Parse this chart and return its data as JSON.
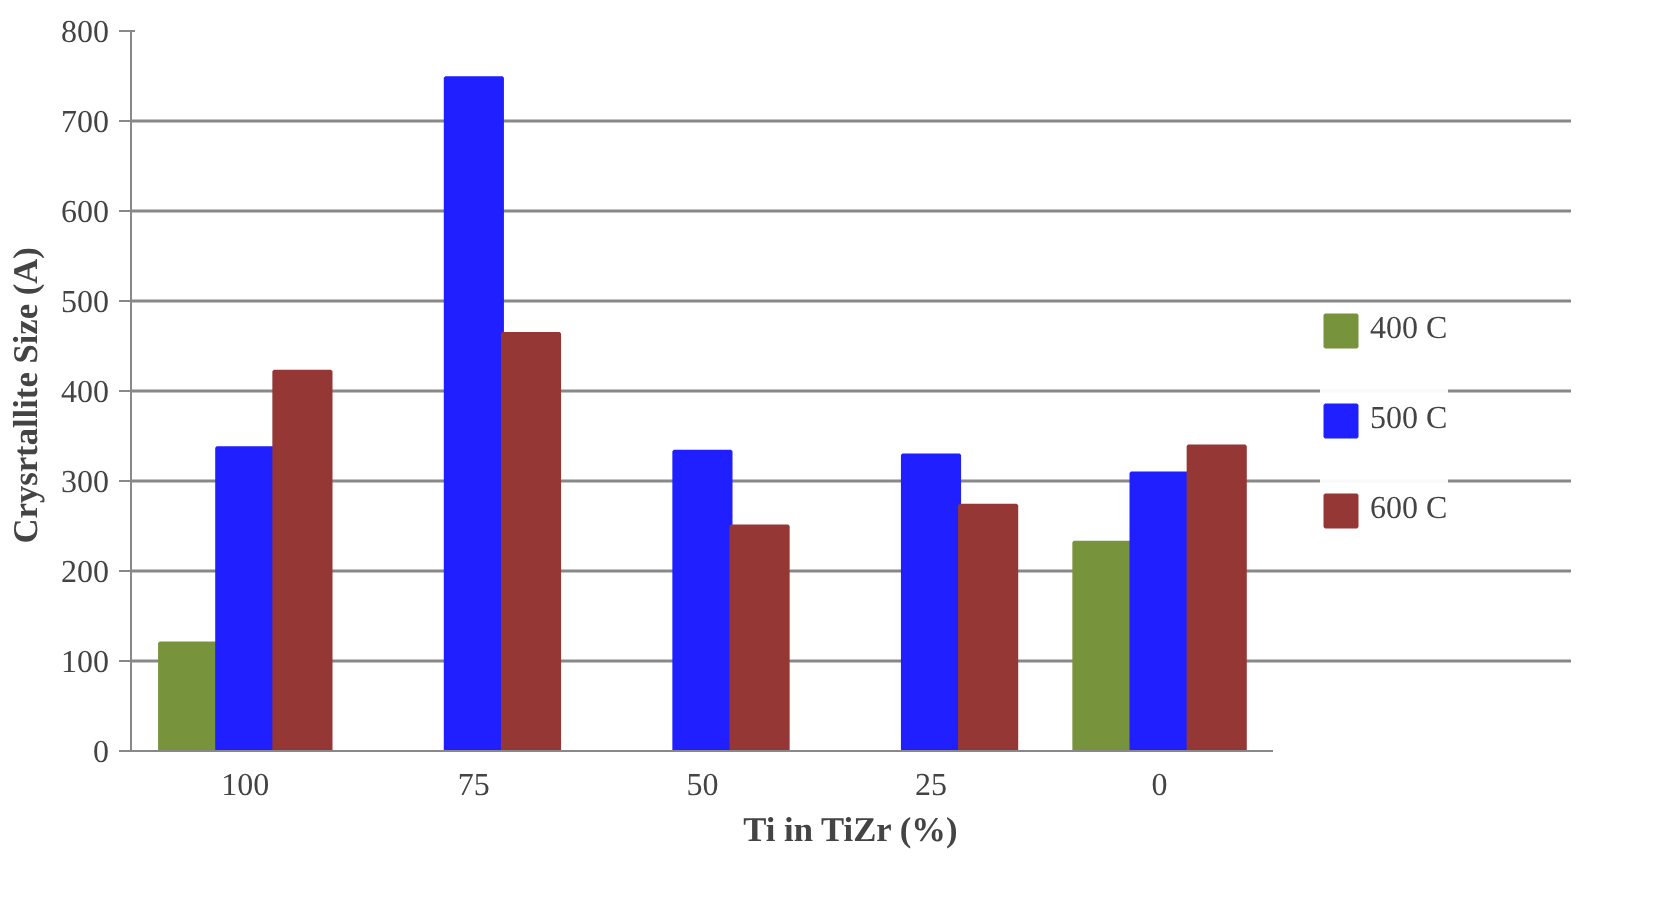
{
  "chart_data": {
    "type": "bar",
    "xlabel": "Ti in TiZr (%)",
    "ylabel": "Crysrtallite Size  (A)",
    "categories": [
      "100",
      "75",
      "50",
      "25",
      "0"
    ],
    "series": [
      {
        "name": "400 C",
        "color": "#77933c",
        "values": [
          120,
          null,
          null,
          null,
          232
        ]
      },
      {
        "name": "500 C",
        "color": "#1f1fff",
        "values": [
          337,
          748,
          333,
          329,
          309
        ]
      },
      {
        "name": "600 C",
        "color": "#953735",
        "values": [
          422,
          464,
          250,
          273,
          339
        ]
      }
    ],
    "ylim": [
      0,
      800
    ],
    "yticks": [
      0,
      100,
      200,
      300,
      400,
      500,
      600,
      700,
      800
    ],
    "grid": "y",
    "legend": "right"
  }
}
